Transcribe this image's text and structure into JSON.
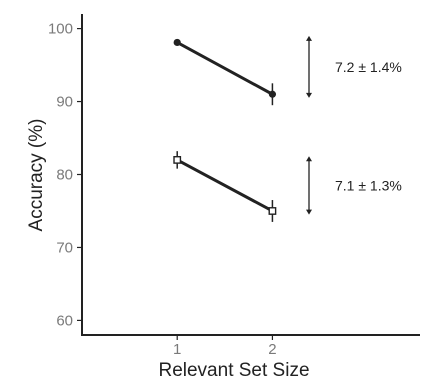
{
  "chart_data": {
    "type": "line",
    "xlabel": "Relevant Set Size",
    "ylabel": "Accuracy (%)",
    "x": [
      1,
      2
    ],
    "x_tick_labels": [
      "1",
      "2"
    ],
    "xlim": [
      0.0,
      3.55
    ],
    "ylim": [
      58,
      102
    ],
    "y_ticks": [
      60,
      70,
      80,
      90,
      100
    ],
    "y_tick_labels": [
      "60",
      "70",
      "80",
      "90",
      "100"
    ],
    "grid": false,
    "series": [
      {
        "marker": "filled-circle",
        "values": [
          98.1,
          91.0
        ],
        "errors": [
          0.4,
          1.5
        ]
      },
      {
        "marker": "open-square",
        "values": [
          82.0,
          75.0
        ],
        "errors": [
          1.2,
          1.5
        ]
      }
    ],
    "annotations": [
      {
        "text": "7.2 ± 1.4%",
        "range": [
          90.5,
          99.0
        ]
      },
      {
        "text": "7.1 ± 1.3%",
        "range": [
          74.5,
          82.5
        ]
      }
    ]
  }
}
